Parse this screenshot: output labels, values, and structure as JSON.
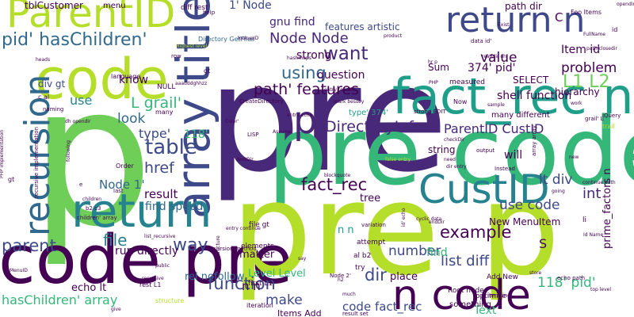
{
  "background": "#ffffff",
  "palette": {
    "dark_purple": "#440154",
    "purple": "#482878",
    "indigo": "#3e4989",
    "blue": "#31688e",
    "teal": "#26828e",
    "green_teal": "#1f9e89",
    "green": "#35b779",
    "lime": "#6ece58",
    "yellow_green": "#b5de2b",
    "yellow": "#fde725"
  },
  "words": [
    {
      "text": "pre"
    },
    {
      "text": "p"
    },
    {
      "text": "code pre"
    },
    {
      "text": "pre code"
    },
    {
      "text": "pre p"
    },
    {
      "text": "code"
    },
    {
      "text": "fact_rec n"
    },
    {
      "text": "array title'"
    },
    {
      "text": "ParentID"
    },
    {
      "text": "recursion"
    },
    {
      "text": "return"
    },
    {
      "text": "CustID"
    },
    {
      "text": "n code"
    },
    {
      "text": "return n"
    },
    {
      "text": "p"
    },
    {
      "text": "pid' hasChildren'"
    },
    {
      "text": "table"
    },
    {
      "text": "fact_rec"
    },
    {
      "text": "ParentID CustID"
    },
    {
      "text": "DirectoryInfo"
    },
    {
      "text": "L1 L2"
    },
    {
      "text": "path' features"
    },
    {
      "text": "Node Node"
    },
    {
      "text": "want"
    },
    {
      "text": "using"
    },
    {
      "text": "problem"
    },
    {
      "text": "example"
    },
    {
      "text": "function"
    },
    {
      "text": "hasChildren' array"
    },
    {
      "text": "parent"
    },
    {
      "text": "way"
    },
    {
      "text": "file"
    },
    {
      "text": "href"
    },
    {
      "text": "list diff"
    },
    {
      "text": "number"
    },
    {
      "text": "dir"
    },
    {
      "text": "use code"
    },
    {
      "text": "make"
    },
    {
      "text": "code fact_rec"
    },
    {
      "text": "118' pid'"
    },
    {
      "text": "Node 1'"
    },
    {
      "text": "lt div"
    },
    {
      "text": "int"
    },
    {
      "text": "L grail'"
    },
    {
      "text": "look"
    },
    {
      "text": "use"
    },
    {
      "text": "strong"
    },
    {
      "text": "value"
    },
    {
      "text": "Item id"
    },
    {
      "text": "tblCustomer"
    },
    {
      "text": "1' Node"
    },
    {
      "text": "gnu find"
    },
    {
      "text": "features artistic"
    },
    {
      "text": "path dir"
    },
    {
      "text": "div gt"
    },
    {
      "text": "know"
    },
    {
      "text": "question"
    },
    {
      "text": "374' pid'"
    },
    {
      "text": "SELECT"
    },
    {
      "text": "hierarchy"
    },
    {
      "text": "shell function"
    },
    {
      "text": "Sum"
    },
    {
      "text": "type'"
    },
    {
      "text": "118'"
    },
    {
      "text": "result"
    },
    {
      "text": "find speed"
    },
    {
      "text": "run directly"
    },
    {
      "text": "matter"
    },
    {
      "text": "rel nofollow"
    },
    {
      "text": "echo lt"
    },
    {
      "text": "Level Level"
    },
    {
      "text": "n n"
    },
    {
      "text": "Text"
    },
    {
      "text": "Items Add"
    },
    {
      "text": "place"
    },
    {
      "text": "New MenuItem"
    },
    {
      "text": "find"
    },
    {
      "text": "S"
    },
    {
      "text": "prime_factors n"
    },
    {
      "text": "string"
    },
    {
      "text": "tree"
    },
    {
      "text": "n n"
    },
    {
      "text": "C"
    },
    {
      "text": "will"
    },
    {
      "text": "menu"
    },
    {
      "text": "diff rest"
    },
    {
      "text": "help"
    },
    {
      "text": "Foo Items"
    },
    {
      "text": "Exist"
    },
    {
      "text": "data id'"
    },
    {
      "text": "Directory GetFiles"
    },
    {
      "text": "lookupID"
    },
    {
      "text": "language"
    },
    {
      "text": "NULL"
    },
    {
      "text": "many"
    },
    {
      "text": "CreateDirectory"
    },
    {
      "text": "entry readdir"
    },
    {
      "text": "hashmaps"
    },
    {
      "text": "measured"
    },
    {
      "text": "PHP"
    },
    {
      "text": "sample"
    },
    {
      "text": "jQuery"
    },
    {
      "text": "work"
    },
    {
      "text": "type' 374'"
    },
    {
      "text": "grail' L"
    },
    {
      "text": "many different"
    },
    {
      "text": "trail"
    },
    {
      "text": "checkDir"
    },
    {
      "text": "dir entry"
    },
    {
      "text": "output"
    },
    {
      "text": "array array"
    },
    {
      "text": "new"
    },
    {
      "text": "continue path"
    },
    {
      "text": "going"
    },
    {
      "text": "li"
    },
    {
      "text": "Id Name"
    },
    {
      "text": "echo path"
    },
    {
      "text": "top level"
    },
    {
      "text": "attempt"
    },
    {
      "text": "al b2"
    },
    {
      "text": "try"
    },
    {
      "text": "Root node"
    },
    {
      "text": "optimize"
    },
    {
      "text": "Add New"
    },
    {
      "text": "something"
    },
    {
      "text": "result set"
    },
    {
      "text": "iteration"
    },
    {
      "text": "first L1"
    },
    {
      "text": "rest L1"
    },
    {
      "text": "recursive"
    },
    {
      "text": "give"
    },
    {
      "text": "structure"
    },
    {
      "text": "public"
    },
    {
      "text": "MenuID"
    },
    {
      "text": "think"
    },
    {
      "text": "children' array"
    },
    {
      "text": "list_recursive"
    },
    {
      "text": "recursion method"
    },
    {
      "text": "elements"
    },
    {
      "text": "file gt"
    },
    {
      "text": "Node 2'"
    },
    {
      "text": "variation"
    },
    {
      "text": "cyclic data"
    },
    {
      "text": "id' echo"
    },
    {
      "text": "much"
    },
    {
      "text": "h2"
    },
    {
      "text": "say"
    },
    {
      "text": "iterating"
    },
    {
      "text": "store"
    },
    {
      "text": "endDir"
    },
    {
      "text": "blockquote"
    },
    {
      "text": "Instead"
    },
    {
      "text": "Order"
    },
    {
      "text": "b2 c3"
    },
    {
      "text": "last"
    },
    {
      "text": "LISP"
    },
    {
      "text": "destDir"
    },
    {
      "text": "Assume"
    },
    {
      "text": "false entry"
    },
    {
      "text": "need"
    },
    {
      "text": "entry continue"
    },
    {
      "text": "data structure"
    },
    {
      "text": "Color'"
    },
    {
      "text": "id"
    },
    {
      "text": "FullName"
    },
    {
      "text": "path closedir"
    },
    {
      "text": "opendir dir"
    },
    {
      "text": "product"
    },
    {
      "text": "aaadddghhzz"
    },
    {
      "text": "Highest level"
    },
    {
      "text": "mark bessey"
    },
    {
      "text": "strong EDIT"
    },
    {
      "text": "entry echo"
    },
    {
      "text": "naming"
    },
    {
      "text": "dh opendir"
    },
    {
      "text": "c al"
    },
    {
      "text": "row"
    },
    {
      "text": "gt"
    },
    {
      "text": "heads"
    },
    {
      "text": "PHP implementation"
    },
    {
      "text": "recursive implementation"
    },
    {
      "text": "following"
    },
    {
      "text": "children"
    },
    {
      "text": "e"
    },
    {
      "text": "Now"
    },
    {
      "text": "hr p"
    },
    {
      "text": "readdir dh"
    },
    {
      "text": "gt"
    }
  ]
}
